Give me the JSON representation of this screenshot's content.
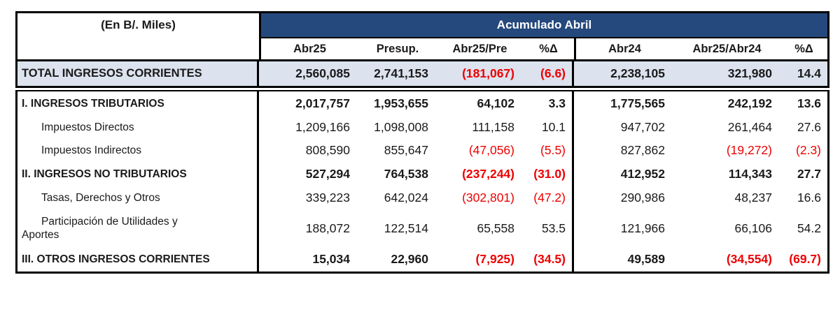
{
  "colors": {
    "header_bg": "#25497D",
    "header_text": "#FFFFFF",
    "total_row_bg": "#DCE3EF",
    "negative": "#EE0000",
    "text": "#1A1A1A",
    "border": "#000000"
  },
  "table": {
    "unit_label": "(En B/. Miles)",
    "group_header": "Acumulado Abril",
    "columns": [
      "Abr25",
      "Presup.",
      "Abr25/Pre",
      "%Δ",
      "Abr24",
      "Abr25/Abr24",
      "%Δ"
    ],
    "total_row": {
      "label": "TOTAL INGRESOS CORRIENTES",
      "style": "total",
      "values": [
        "2,560,085",
        "2,741,153",
        "(181,067)",
        "(6.6)",
        "2,238,105",
        "321,980",
        "14.4"
      ]
    },
    "rows": [
      {
        "label": "I. INGRESOS TRIBUTARIOS",
        "style": "section",
        "values": [
          "2,017,757",
          "1,953,655",
          "64,102",
          "3.3",
          "1,775,565",
          "242,192",
          "13.6"
        ]
      },
      {
        "label": "Impuestos Directos",
        "style": "sub",
        "values": [
          "1,209,166",
          "1,098,008",
          "111,158",
          "10.1",
          "947,702",
          "261,464",
          "27.6"
        ]
      },
      {
        "label": "Impuestos Indirectos",
        "style": "sub",
        "values": [
          "808,590",
          "855,647",
          "(47,056)",
          "(5.5)",
          "827,862",
          "(19,272)",
          "(2.3)"
        ]
      },
      {
        "label": "II. INGRESOS NO TRIBUTARIOS",
        "style": "section",
        "values": [
          "527,294",
          "764,538",
          "(237,244)",
          "(31.0)",
          "412,952",
          "114,343",
          "27.7"
        ]
      },
      {
        "label": "Tasas, Derechos y Otros",
        "style": "sub",
        "values": [
          "339,223",
          "642,024",
          "(302,801)",
          "(47.2)",
          "290,986",
          "48,237",
          "16.6"
        ]
      },
      {
        "label": "Participación de Utilidades y Aportes",
        "style": "sub-wrap",
        "values": [
          "188,072",
          "122,514",
          "65,558",
          "53.5",
          "121,966",
          "66,106",
          "54.2"
        ]
      },
      {
        "label": "III. OTROS INGRESOS CORRIENTES",
        "style": "section",
        "values": [
          "15,034",
          "22,960",
          "(7,925)",
          "(34.5)",
          "49,589",
          "(34,554)",
          "(69.7)"
        ]
      }
    ]
  }
}
